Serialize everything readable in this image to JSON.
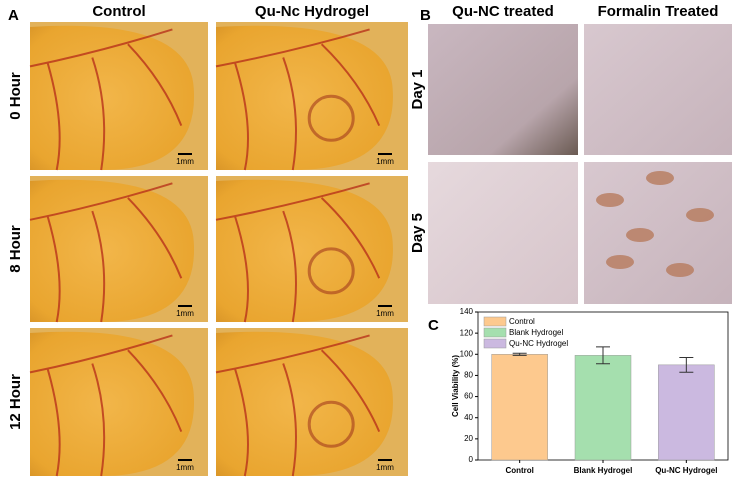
{
  "panel_a": {
    "label": "A",
    "columns": [
      "Control",
      "Qu-Nc Hydrogel"
    ],
    "rows": [
      "0 Hour",
      "8 Hour",
      "12 Hour"
    ],
    "scale_bar": "1mm"
  },
  "panel_b": {
    "label": "B",
    "columns": [
      "Qu-NC treated",
      "Formalin Treated"
    ],
    "rows": [
      "Day 1",
      "Day 5"
    ]
  },
  "chart_data": {
    "type": "bar",
    "label": "C",
    "y_label": "Cell Viability (%)",
    "categories": [
      "Control",
      "Blank Hydrogel",
      "Qu-NC Hydrogel"
    ],
    "values": [
      100,
      99,
      90
    ],
    "errors": [
      1,
      8,
      7
    ],
    "colors": [
      "#fdc98e",
      "#a5dfae",
      "#cbb9e0"
    ],
    "ylim": [
      0,
      140
    ],
    "yticks": [
      0,
      20,
      40,
      60,
      80,
      100,
      120,
      140
    ],
    "legend": "upper left"
  }
}
